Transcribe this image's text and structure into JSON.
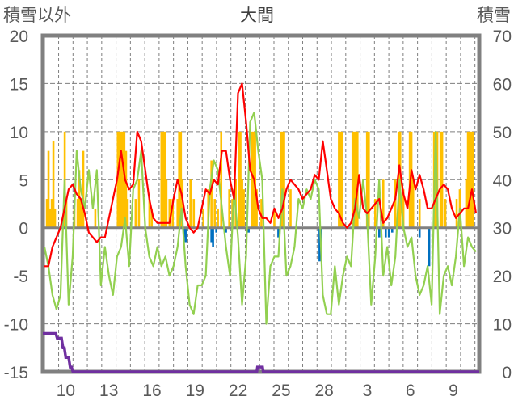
{
  "chart_data": {
    "type": "line",
    "title": "大間",
    "ylabel_left": "積雪以外",
    "ylabel_right": "積雪",
    "ylim_left": [
      -15,
      20
    ],
    "ylim_right": [
      0,
      70
    ],
    "yticks_left": [
      "20",
      "15",
      "10",
      "5",
      "0",
      "-5",
      "-10",
      "-15"
    ],
    "yticks_right": [
      "70",
      "60",
      "50",
      "40",
      "30",
      "20",
      "10",
      "0"
    ],
    "xlim_days": [
      0,
      30.4
    ],
    "x_tick_labels": [
      "10",
      "13",
      "16",
      "19",
      "22",
      "25",
      "28",
      "3",
      "6",
      "9"
    ],
    "x_tick_label_positions_days": [
      1.6,
      4.6,
      7.6,
      10.6,
      13.6,
      16.6,
      19.6,
      22.6,
      25.6,
      28.6
    ],
    "x_grid_days_first": 1.1,
    "x_grid_count": 30,
    "grid": true,
    "colors": {
      "red": "#ff0000",
      "green": "#92d050",
      "yellow": "#ffc000",
      "blue": "#0070c0",
      "purple": "#7030a0",
      "axis": "#808080",
      "grid": "#7f7f7f"
    },
    "series": [
      {
        "name": "red-line",
        "axis": "left",
        "t0": 0.11,
        "dt": 0.281,
        "values": [
          -4,
          -4,
          -2,
          -1,
          0,
          2,
          4,
          4.5,
          3.5,
          3,
          1.5,
          -0.5,
          -1,
          -1.5,
          -1,
          -1,
          1,
          3,
          5,
          8,
          5,
          4,
          4.5,
          10,
          9,
          6,
          3,
          1,
          0.5,
          0.5,
          0.5,
          0.5,
          3,
          5,
          3.5,
          1,
          0,
          -0.5,
          0,
          2,
          4,
          3.5,
          5,
          4.5,
          8,
          8,
          5,
          3,
          14,
          15,
          11,
          6,
          5,
          2,
          1,
          1,
          0.5,
          2,
          1,
          2,
          4,
          5,
          4.5,
          4,
          3,
          3.5,
          4,
          5.5,
          5,
          9,
          6,
          3,
          2,
          1.5,
          0.5,
          0,
          0.5,
          2,
          5.5,
          2,
          1.5,
          2,
          2.5,
          3,
          0.5,
          1,
          2,
          3,
          6.5,
          3.5,
          2,
          6,
          4,
          5.5,
          4,
          2,
          2,
          3,
          4,
          4.5,
          4,
          2,
          1,
          1.5,
          2,
          2,
          4,
          1.5
        ]
      },
      {
        "name": "green-line",
        "axis": "left",
        "t0": 0.11,
        "dt": 0.281,
        "values": [
          -2,
          -4,
          -7,
          -8.5,
          -7,
          5,
          -8,
          -3,
          8,
          4,
          2,
          6,
          2,
          6,
          -6,
          -2,
          -5,
          -7,
          -3,
          -2,
          1,
          -4,
          4,
          5,
          8,
          0,
          -3,
          -4,
          -2,
          -4,
          -3,
          -5,
          -4,
          -2,
          2,
          -4,
          -8,
          -9,
          -6,
          -6,
          -5,
          4,
          7,
          6,
          2,
          -2,
          -5,
          4,
          -1,
          -8,
          -3,
          11,
          12,
          8,
          5,
          -10,
          -4,
          -3,
          -3,
          4,
          -5,
          -4,
          -2,
          3,
          2,
          4,
          3,
          5,
          4,
          -7,
          -9,
          -9,
          -4,
          -8,
          -5,
          -3,
          -4,
          3,
          1,
          5,
          1,
          -8,
          -3,
          5,
          -5,
          -2,
          -6,
          -3,
          5,
          0,
          -2,
          -1,
          -5,
          -7,
          -6,
          -4,
          -8,
          10,
          -9,
          -5,
          -4,
          -6,
          -3,
          2,
          -4,
          -1,
          -2,
          -2.5
        ]
      },
      {
        "name": "yellow-bars",
        "axis": "left",
        "bars": [
          [
            0.28,
            3
          ],
          [
            0.39,
            8
          ],
          [
            0.51,
            2
          ],
          [
            0.62,
            3
          ],
          [
            0.73,
            9
          ],
          [
            0.84,
            2
          ],
          [
            1.52,
            10
          ],
          [
            1.63,
            3
          ],
          [
            2.19,
            2
          ],
          [
            2.42,
            3
          ],
          [
            2.53,
            6
          ],
          [
            2.64,
            3
          ],
          [
            2.81,
            8
          ],
          [
            3.65,
            2
          ],
          [
            5.22,
            10
          ],
          [
            5.34,
            10
          ],
          [
            5.45,
            10
          ],
          [
            5.56,
            10
          ],
          [
            5.67,
            10
          ],
          [
            5.79,
            8
          ],
          [
            5.9,
            3
          ],
          [
            6.46,
            3
          ],
          [
            6.69,
            5
          ],
          [
            7.42,
            3
          ],
          [
            7.58,
            2
          ],
          [
            8.26,
            10
          ],
          [
            8.37,
            10
          ],
          [
            8.48,
            10
          ],
          [
            8.6,
            5
          ],
          [
            8.82,
            3
          ],
          [
            9.04,
            3
          ],
          [
            9.38,
            3
          ],
          [
            9.49,
            10
          ],
          [
            9.61,
            10
          ],
          [
            9.72,
            5
          ],
          [
            10.28,
            5
          ],
          [
            10.51,
            3
          ],
          [
            11.18,
            2
          ],
          [
            11.52,
            4
          ],
          [
            11.74,
            7
          ],
          [
            11.97,
            3
          ],
          [
            12.19,
            2
          ],
          [
            12.42,
            10
          ],
          [
            12.98,
            4
          ],
          [
            13.2,
            3
          ],
          [
            13.43,
            5
          ],
          [
            13.65,
            10
          ],
          [
            13.76,
            10
          ],
          [
            13.88,
            5
          ],
          [
            13.99,
            4
          ],
          [
            14.55,
            10
          ],
          [
            14.66,
            10
          ],
          [
            14.78,
            10
          ],
          [
            14.89,
            4
          ],
          [
            15.22,
            3
          ],
          [
            16.12,
            2
          ],
          [
            16.57,
            10
          ],
          [
            16.69,
            10
          ],
          [
            16.8,
            10
          ],
          [
            17.25,
            4
          ],
          [
            20.62,
            10
          ],
          [
            20.73,
            10
          ],
          [
            20.84,
            10
          ],
          [
            21.57,
            10
          ],
          [
            21.69,
            10
          ],
          [
            21.8,
            10
          ],
          [
            21.91,
            10
          ],
          [
            22.58,
            10
          ],
          [
            22.7,
            10
          ],
          [
            23.15,
            3
          ],
          [
            23.71,
            5
          ],
          [
            24.55,
            5
          ],
          [
            24.78,
            10
          ],
          [
            24.89,
            10
          ],
          [
            25.11,
            4
          ],
          [
            25.56,
            10
          ],
          [
            25.67,
            10
          ],
          [
            25.79,
            5
          ],
          [
            26.24,
            3
          ],
          [
            27.25,
            10
          ],
          [
            27.36,
            10
          ],
          [
            27.47,
            10
          ],
          [
            27.7,
            10
          ],
          [
            27.81,
            10
          ],
          [
            28.03,
            3
          ],
          [
            28.82,
            3
          ],
          [
            29.04,
            4
          ],
          [
            29.49,
            5
          ],
          [
            29.61,
            10
          ],
          [
            29.72,
            10
          ],
          [
            29.83,
            10
          ],
          [
            29.94,
            10
          ]
        ]
      },
      {
        "name": "blue-bars",
        "axis": "left",
        "bars": [
          [
            9.83,
            -1
          ],
          [
            9.94,
            -1.5
          ],
          [
            11.74,
            -1.5
          ],
          [
            11.85,
            -2
          ],
          [
            12.08,
            -0.5
          ],
          [
            12.75,
            -0.5
          ],
          [
            14.33,
            -0.5
          ],
          [
            16.4,
            -1
          ],
          [
            19.27,
            -3.5
          ],
          [
            19.38,
            -2.5
          ],
          [
            23.43,
            -1
          ],
          [
            23.88,
            -1
          ],
          [
            24.1,
            -1
          ],
          [
            24.33,
            -0.5
          ],
          [
            26.24,
            -1
          ],
          [
            26.91,
            -4
          ]
        ]
      },
      {
        "name": "snow-depth",
        "axis": "right",
        "points": [
          [
            0,
            8
          ],
          [
            0.9,
            8
          ],
          [
            1.0,
            7
          ],
          [
            1.3,
            7
          ],
          [
            1.4,
            5
          ],
          [
            1.5,
            5
          ],
          [
            1.6,
            3
          ],
          [
            1.8,
            3
          ],
          [
            1.9,
            1
          ],
          [
            2.0,
            1
          ],
          [
            2.1,
            0
          ],
          [
            14.9,
            0
          ],
          [
            14.95,
            1
          ],
          [
            15.3,
            1
          ],
          [
            15.35,
            0
          ],
          [
            30.4,
            0
          ]
        ]
      }
    ]
  }
}
